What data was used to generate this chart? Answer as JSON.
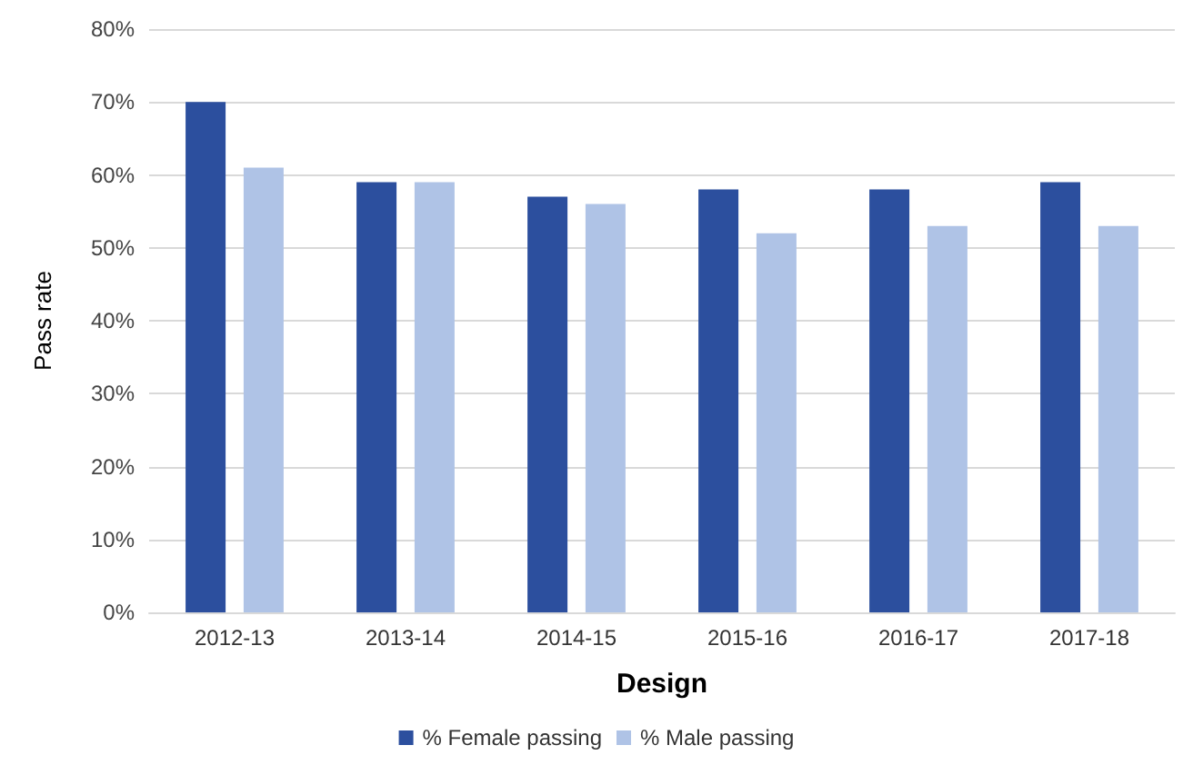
{
  "chart_data": {
    "type": "bar",
    "xlabel": "Design",
    "ylabel": "Pass rate",
    "categories": [
      "2012-13",
      "2013-14",
      "2014-15",
      "2015-16",
      "2016-17",
      "2017-18"
    ],
    "series": [
      {
        "name": "% Female passing",
        "color": "#2c4f9e",
        "values": [
          0.7,
          0.59,
          0.57,
          0.58,
          0.58,
          0.59
        ]
      },
      {
        "name": "% Male passing",
        "color": "#afc3e6",
        "values": [
          0.61,
          0.59,
          0.56,
          0.52,
          0.53,
          0.53
        ]
      }
    ],
    "ylim": [
      0,
      0.8
    ],
    "yticks": [
      {
        "value": 0,
        "label": "0%"
      },
      {
        "value": 0.1,
        "label": "10%"
      },
      {
        "value": 0.2,
        "label": "20%"
      },
      {
        "value": 0.3,
        "label": "30%"
      },
      {
        "value": 0.4,
        "label": "40%"
      },
      {
        "value": 0.5,
        "label": "50%"
      },
      {
        "value": 0.6,
        "label": "60%"
      },
      {
        "value": 0.7,
        "label": "70%"
      },
      {
        "value": 0.8,
        "label": "80%"
      }
    ],
    "grid": "y",
    "legend": "bottom"
  }
}
